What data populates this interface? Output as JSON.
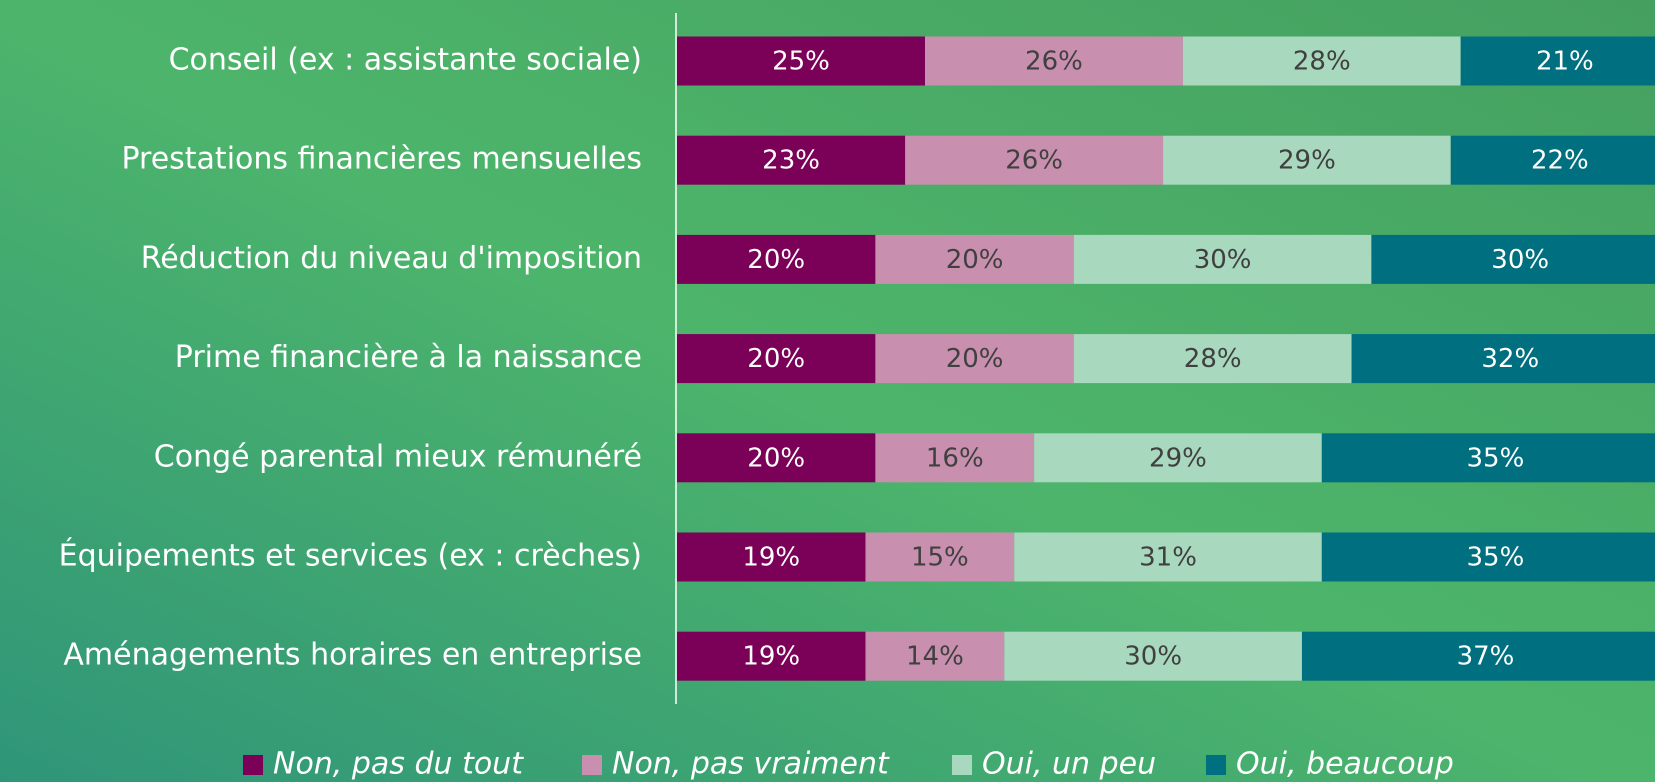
{
  "chart_data": {
    "type": "bar",
    "orientation": "horizontal",
    "stacked": true,
    "categories": [
      "Conseil (ex : assistante sociale)",
      "Prestations financières mensuelles",
      "Réduction du niveau d'imposition",
      "Prime financière à la naissance",
      "Congé parental mieux rémunéré",
      "Équipements et services (ex : crèches)",
      "Aménagements horaires en entreprise"
    ],
    "series": [
      {
        "name": "Non, pas du tout",
        "color": "#7b0057",
        "values": [
          25,
          23,
          20,
          20,
          20,
          19,
          19
        ],
        "value_labels": [
          "25%",
          "23%",
          "20%",
          "20%",
          "20%",
          "19%",
          "19%"
        ]
      },
      {
        "name": "Non, pas vraiment",
        "color": "#c98fae",
        "values": [
          26,
          26,
          20,
          20,
          16,
          15,
          14
        ],
        "value_labels": [
          "26%",
          "26%",
          "20%",
          "20%",
          "16%",
          "15%",
          "14%"
        ]
      },
      {
        "name": "Oui, un peu",
        "color": "#a8d8bd",
        "values": [
          28,
          29,
          30,
          28,
          29,
          31,
          30
        ],
        "value_labels": [
          "28%",
          "29%",
          "30%",
          "28%",
          "29%",
          "31%",
          "30%"
        ]
      },
      {
        "name": "Oui, beaucoup",
        "color": "#006f7f",
        "values": [
          21,
          22,
          30,
          32,
          35,
          35,
          37
        ],
        "value_labels": [
          "21%",
          "22%",
          "30%",
          "32%",
          "35%",
          "35%",
          "37%"
        ]
      }
    ],
    "legend": "bottom"
  }
}
